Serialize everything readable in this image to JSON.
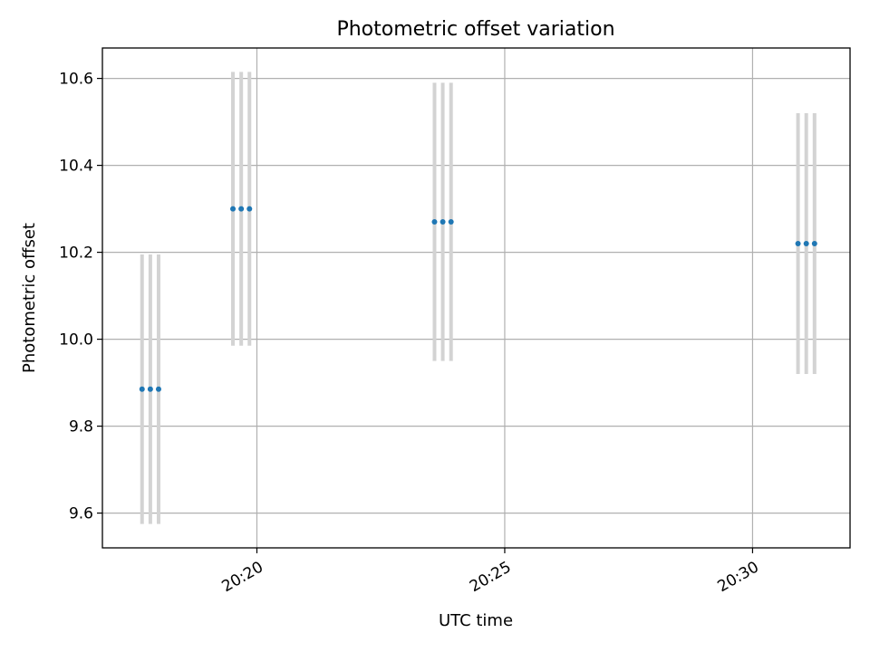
{
  "chart_data": {
    "type": "scatter",
    "title": "Photometric offset variation",
    "xlabel": "UTC time",
    "ylabel": "Photometric offset",
    "xlim": [
      "20:16:53",
      "20:31:58"
    ],
    "ylim": [
      9.52,
      10.67
    ],
    "grid": true,
    "x_ticks": [
      {
        "time": "20:20:00",
        "label": "20:20"
      },
      {
        "time": "20:25:00",
        "label": "20:25"
      },
      {
        "time": "20:30:00",
        "label": "20:30"
      }
    ],
    "y_ticks": [
      9.6,
      9.8,
      10.0,
      10.2,
      10.4,
      10.6
    ],
    "y_tick_labels": [
      "9.6",
      "9.8",
      "10.0",
      "10.2",
      "10.4",
      "10.6"
    ],
    "series": [
      {
        "marker_color": "#1f77b4",
        "errorbar_color": "#d3d3d3",
        "points": [
          {
            "time": "20:17:41",
            "y": 9.885,
            "err": 0.31
          },
          {
            "time": "20:17:51",
            "y": 9.885,
            "err": 0.31
          },
          {
            "time": "20:18:01",
            "y": 9.885,
            "err": 0.31
          },
          {
            "time": "20:19:31",
            "y": 10.3,
            "err": 0.315
          },
          {
            "time": "20:19:41",
            "y": 10.3,
            "err": 0.315
          },
          {
            "time": "20:19:51",
            "y": 10.3,
            "err": 0.315
          },
          {
            "time": "20:23:35",
            "y": 10.27,
            "err": 0.32
          },
          {
            "time": "20:23:45",
            "y": 10.27,
            "err": 0.32
          },
          {
            "time": "20:23:55",
            "y": 10.27,
            "err": 0.32
          },
          {
            "time": "20:30:55",
            "y": 10.22,
            "err": 0.3
          },
          {
            "time": "20:31:05",
            "y": 10.22,
            "err": 0.3
          },
          {
            "time": "20:31:15",
            "y": 10.22,
            "err": 0.3
          }
        ]
      }
    ]
  }
}
